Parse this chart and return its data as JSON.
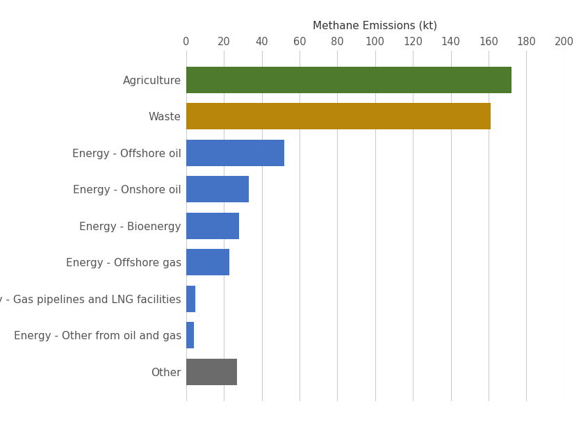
{
  "categories": [
    "Agriculture",
    "Waste",
    "Energy - Offshore oil",
    "Energy - Onshore oil",
    "Energy - Bioenergy",
    "Energy - Offshore gas",
    "Energy - Gas pipelines and LNG facilities",
    "Energy - Other from oil and gas",
    "Other"
  ],
  "values": [
    172,
    161,
    52,
    33,
    28,
    23,
    5,
    4,
    27
  ],
  "colors": [
    "#4e7a2e",
    "#b8860b",
    "#4472c4",
    "#4472c4",
    "#4472c4",
    "#4472c4",
    "#4472c4",
    "#4472c4",
    "#6b6b6b"
  ],
  "xlabel": "Methane Emissions (kt)",
  "xlim": [
    0,
    200
  ],
  "xticks": [
    0,
    20,
    40,
    60,
    80,
    100,
    120,
    140,
    160,
    180,
    200
  ],
  "background_color": "#ffffff",
  "grid_color": "#cccccc",
  "xlabel_fontsize": 11,
  "ylabel_fontsize": 11,
  "tick_fontsize": 10.5,
  "bar_height": 0.72
}
